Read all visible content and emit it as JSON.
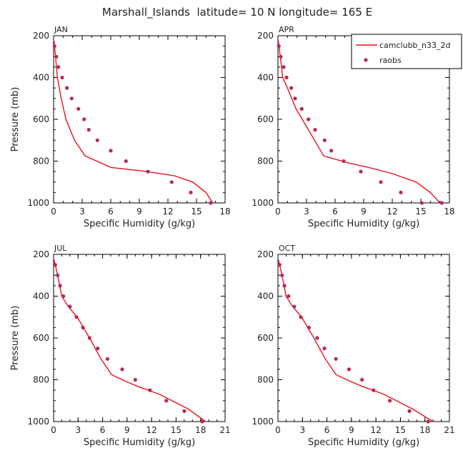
{
  "figure_title": "Marshall_Islands  latitude= 10 N longitude= 165 E",
  "legend": {
    "model_label": "camclubb_n33_2d",
    "obs_label": "raobs",
    "model_color": "#e8141e",
    "obs_color": "#b8285a"
  },
  "chart_data": [
    {
      "type": "line",
      "title": "JAN",
      "xlabel": "Specific Humidity (g/kg)",
      "ylabel": "Pressure (mb)",
      "xlim": [
        0,
        18
      ],
      "ylim": [
        1000,
        200
      ],
      "y_inverted": true,
      "xticks": [
        0,
        3,
        6,
        9,
        12,
        15,
        18
      ],
      "yticks": [
        200,
        400,
        600,
        800,
        1000
      ],
      "series": [
        {
          "name": "camclubb_n33_2d",
          "style": "line",
          "x": [
            0.05,
            0.1,
            0.2,
            0.4,
            0.8,
            1.3,
            2.2,
            3.3,
            6.0,
            9.8,
            12.7,
            14.6,
            16.0,
            16.7
          ],
          "y": [
            225,
            250,
            300,
            400,
            500,
            600,
            700,
            775,
            830,
            850,
            870,
            900,
            950,
            1000
          ]
        },
        {
          "name": "raobs",
          "style": "marker",
          "x": [
            0.1,
            0.3,
            0.5,
            0.9,
            1.4,
            1.9,
            2.6,
            3.2,
            3.7,
            4.6,
            6.0,
            7.6,
            9.9,
            12.4,
            14.4,
            16.5
          ],
          "y": [
            250,
            300,
            350,
            400,
            450,
            500,
            550,
            600,
            650,
            700,
            750,
            800,
            850,
            900,
            950,
            1000
          ]
        }
      ]
    },
    {
      "type": "line",
      "title": "APR",
      "xlabel": "Specific Humidity (g/kg)",
      "ylabel": "",
      "xlim": [
        0,
        18
      ],
      "ylim": [
        1000,
        200
      ],
      "y_inverted": true,
      "xticks": [
        0,
        3,
        6,
        9,
        12,
        15,
        18
      ],
      "yticks": [
        200,
        400,
        600,
        800,
        1000
      ],
      "series": [
        {
          "name": "camclubb_n33_2d",
          "style": "line",
          "x": [
            0.05,
            0.1,
            0.25,
            0.5,
            1.0,
            1.9,
            3.2,
            4.8,
            7.5,
            9.5,
            12.0,
            14.5,
            16.0,
            17.0
          ],
          "y": [
            225,
            250,
            300,
            400,
            450,
            550,
            650,
            775,
            810,
            830,
            860,
            900,
            950,
            1000
          ]
        },
        {
          "name": "raobs",
          "style": "marker",
          "x": [
            0.1,
            0.3,
            0.6,
            0.9,
            1.4,
            1.8,
            2.5,
            3.2,
            3.9,
            4.9,
            5.6,
            6.9,
            8.7,
            10.8,
            12.9,
            15.1,
            17.2
          ],
          "y": [
            250,
            300,
            350,
            400,
            450,
            500,
            550,
            600,
            650,
            700,
            750,
            800,
            850,
            900,
            950,
            1000,
            1000
          ]
        }
      ]
    },
    {
      "type": "line",
      "title": "JUL",
      "xlabel": "Specific Humidity (g/kg)",
      "ylabel": "Pressure (mb)",
      "xlim": [
        0,
        21
      ],
      "ylim": [
        1000,
        200
      ],
      "y_inverted": true,
      "xticks": [
        0,
        3,
        6,
        9,
        12,
        15,
        18,
        21
      ],
      "yticks": [
        200,
        400,
        600,
        800,
        1000
      ],
      "series": [
        {
          "name": "camclubb_n33_2d",
          "style": "line",
          "x": [
            0.05,
            0.2,
            0.5,
            1.0,
            1.8,
            2.9,
            4.4,
            5.8,
            7.1,
            8.4,
            10.2,
            13.0,
            16.5,
            18.6
          ],
          "y": [
            225,
            250,
            300,
            400,
            450,
            500,
            600,
            700,
            775,
            800,
            830,
            870,
            940,
            1000
          ]
        },
        {
          "name": "raobs",
          "style": "marker",
          "x": [
            0.2,
            0.5,
            0.8,
            1.2,
            2.0,
            2.8,
            3.6,
            4.4,
            5.4,
            6.6,
            8.4,
            10.0,
            11.8,
            13.8,
            16.0,
            18.2
          ],
          "y": [
            250,
            300,
            350,
            400,
            450,
            500,
            550,
            600,
            650,
            700,
            750,
            800,
            850,
            900,
            950,
            1000
          ]
        }
      ]
    },
    {
      "type": "line",
      "title": "OCT",
      "xlabel": "Specific Humidity (g/kg)",
      "ylabel": "",
      "xlim": [
        0,
        21
      ],
      "ylim": [
        1000,
        200
      ],
      "y_inverted": true,
      "xticks": [
        0,
        3,
        6,
        9,
        12,
        15,
        18,
        21
      ],
      "yticks": [
        200,
        400,
        600,
        800,
        1000
      ],
      "series": [
        {
          "name": "camclubb_n33_2d",
          "style": "line",
          "x": [
            0.05,
            0.2,
            0.5,
            1.0,
            1.8,
            2.9,
            4.4,
            5.8,
            7.1,
            8.4,
            10.2,
            13.0,
            16.5,
            19.0
          ],
          "y": [
            225,
            250,
            300,
            400,
            450,
            500,
            600,
            700,
            775,
            800,
            830,
            870,
            940,
            1000
          ]
        },
        {
          "name": "raobs",
          "style": "marker",
          "x": [
            0.2,
            0.5,
            0.8,
            1.3,
            2.0,
            2.8,
            3.8,
            4.8,
            5.7,
            7.1,
            8.7,
            10.3,
            11.7,
            13.7,
            16.1,
            18.4
          ],
          "y": [
            250,
            300,
            350,
            400,
            450,
            500,
            550,
            600,
            650,
            700,
            750,
            800,
            850,
            900,
            950,
            1000
          ]
        }
      ]
    }
  ]
}
